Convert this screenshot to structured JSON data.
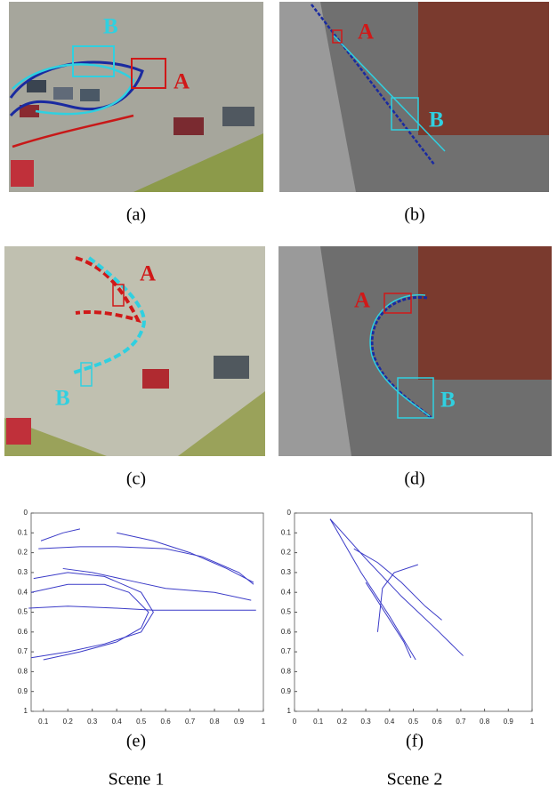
{
  "panels": [
    {
      "caption": "(a)",
      "labels": [
        "B",
        "A"
      ]
    },
    {
      "caption": "(b)",
      "labels": [
        "A",
        "B"
      ]
    },
    {
      "caption": "(c)",
      "labels": [
        "A",
        "B"
      ]
    },
    {
      "caption": "(d)",
      "labels": [
        "A",
        "B"
      ]
    },
    {
      "caption": "(e)"
    },
    {
      "caption": "(f)"
    }
  ],
  "scenes": [
    "Scene 1",
    "Scene 2"
  ],
  "chart_data": [
    {
      "type": "line",
      "xlim": [
        0.05,
        1
      ],
      "ylim": [
        1,
        0
      ],
      "xticks": [
        0.1,
        0.2,
        0.3,
        0.4,
        0.5,
        0.6,
        0.7,
        0.8,
        0.9,
        1
      ],
      "yticks": [
        0,
        0.1,
        0.2,
        0.3,
        0.4,
        0.5,
        0.6,
        0.7,
        0.8,
        0.9,
        1
      ],
      "series": [
        {
          "color": "#3c3cc8",
          "x": [
            0.08,
            0.25,
            0.4,
            0.6,
            0.75,
            0.9,
            0.96
          ],
          "values": [
            0.18,
            0.17,
            0.17,
            0.18,
            0.22,
            0.3,
            0.36
          ]
        },
        {
          "color": "#3c3cc8",
          "x": [
            0.06,
            0.2,
            0.35,
            0.5,
            0.55,
            0.5,
            0.35,
            0.2,
            0.05
          ],
          "values": [
            0.33,
            0.3,
            0.32,
            0.4,
            0.5,
            0.6,
            0.66,
            0.7,
            0.73
          ]
        },
        {
          "color": "#3c3cc8",
          "x": [
            0.04,
            0.2,
            0.4,
            0.55,
            0.7,
            0.97
          ],
          "values": [
            0.48,
            0.47,
            0.48,
            0.49,
            0.49,
            0.49
          ]
        },
        {
          "color": "#3c3cc8",
          "x": [
            0.18,
            0.3,
            0.45,
            0.6,
            0.8,
            0.95
          ],
          "values": [
            0.28,
            0.3,
            0.34,
            0.38,
            0.4,
            0.44
          ]
        },
        {
          "color": "#3c3cc8",
          "x": [
            0.09,
            0.18,
            0.25
          ],
          "values": [
            0.14,
            0.1,
            0.08
          ]
        },
        {
          "color": "#3c3cc8",
          "x": [
            0.4,
            0.55,
            0.7,
            0.85,
            0.96
          ],
          "values": [
            0.1,
            0.14,
            0.2,
            0.28,
            0.35
          ]
        },
        {
          "color": "#3c3cc8",
          "x": [
            0.05,
            0.2,
            0.35,
            0.45,
            0.53,
            0.5,
            0.4,
            0.25,
            0.1
          ],
          "values": [
            0.4,
            0.36,
            0.36,
            0.4,
            0.5,
            0.58,
            0.65,
            0.7,
            0.74
          ]
        }
      ]
    },
    {
      "type": "line",
      "xlim": [
        0,
        1
      ],
      "ylim": [
        1,
        0
      ],
      "xticks": [
        0,
        0.1,
        0.2,
        0.3,
        0.4,
        0.5,
        0.6,
        0.7,
        0.8,
        0.9,
        1
      ],
      "yticks": [
        0,
        0.1,
        0.2,
        0.3,
        0.4,
        0.5,
        0.6,
        0.7,
        0.8,
        0.9,
        1
      ],
      "series": [
        {
          "color": "#3c3cc8",
          "x": [
            0.15,
            0.3,
            0.45,
            0.6,
            0.71
          ],
          "values": [
            0.03,
            0.23,
            0.42,
            0.59,
            0.72
          ]
        },
        {
          "color": "#3c3cc8",
          "x": [
            0.15,
            0.28,
            0.4,
            0.48,
            0.51
          ],
          "values": [
            0.03,
            0.3,
            0.52,
            0.68,
            0.74
          ]
        },
        {
          "color": "#3c3cc8",
          "x": [
            0.25,
            0.35,
            0.45,
            0.55,
            0.62
          ],
          "values": [
            0.18,
            0.25,
            0.35,
            0.47,
            0.54
          ]
        },
        {
          "color": "#3c3cc8",
          "x": [
            0.35,
            0.37,
            0.42,
            0.52
          ],
          "values": [
            0.6,
            0.38,
            0.3,
            0.26
          ]
        },
        {
          "color": "#3c3cc8",
          "x": [
            0.3,
            0.38,
            0.46,
            0.49
          ],
          "values": [
            0.35,
            0.5,
            0.65,
            0.73
          ]
        }
      ]
    }
  ]
}
